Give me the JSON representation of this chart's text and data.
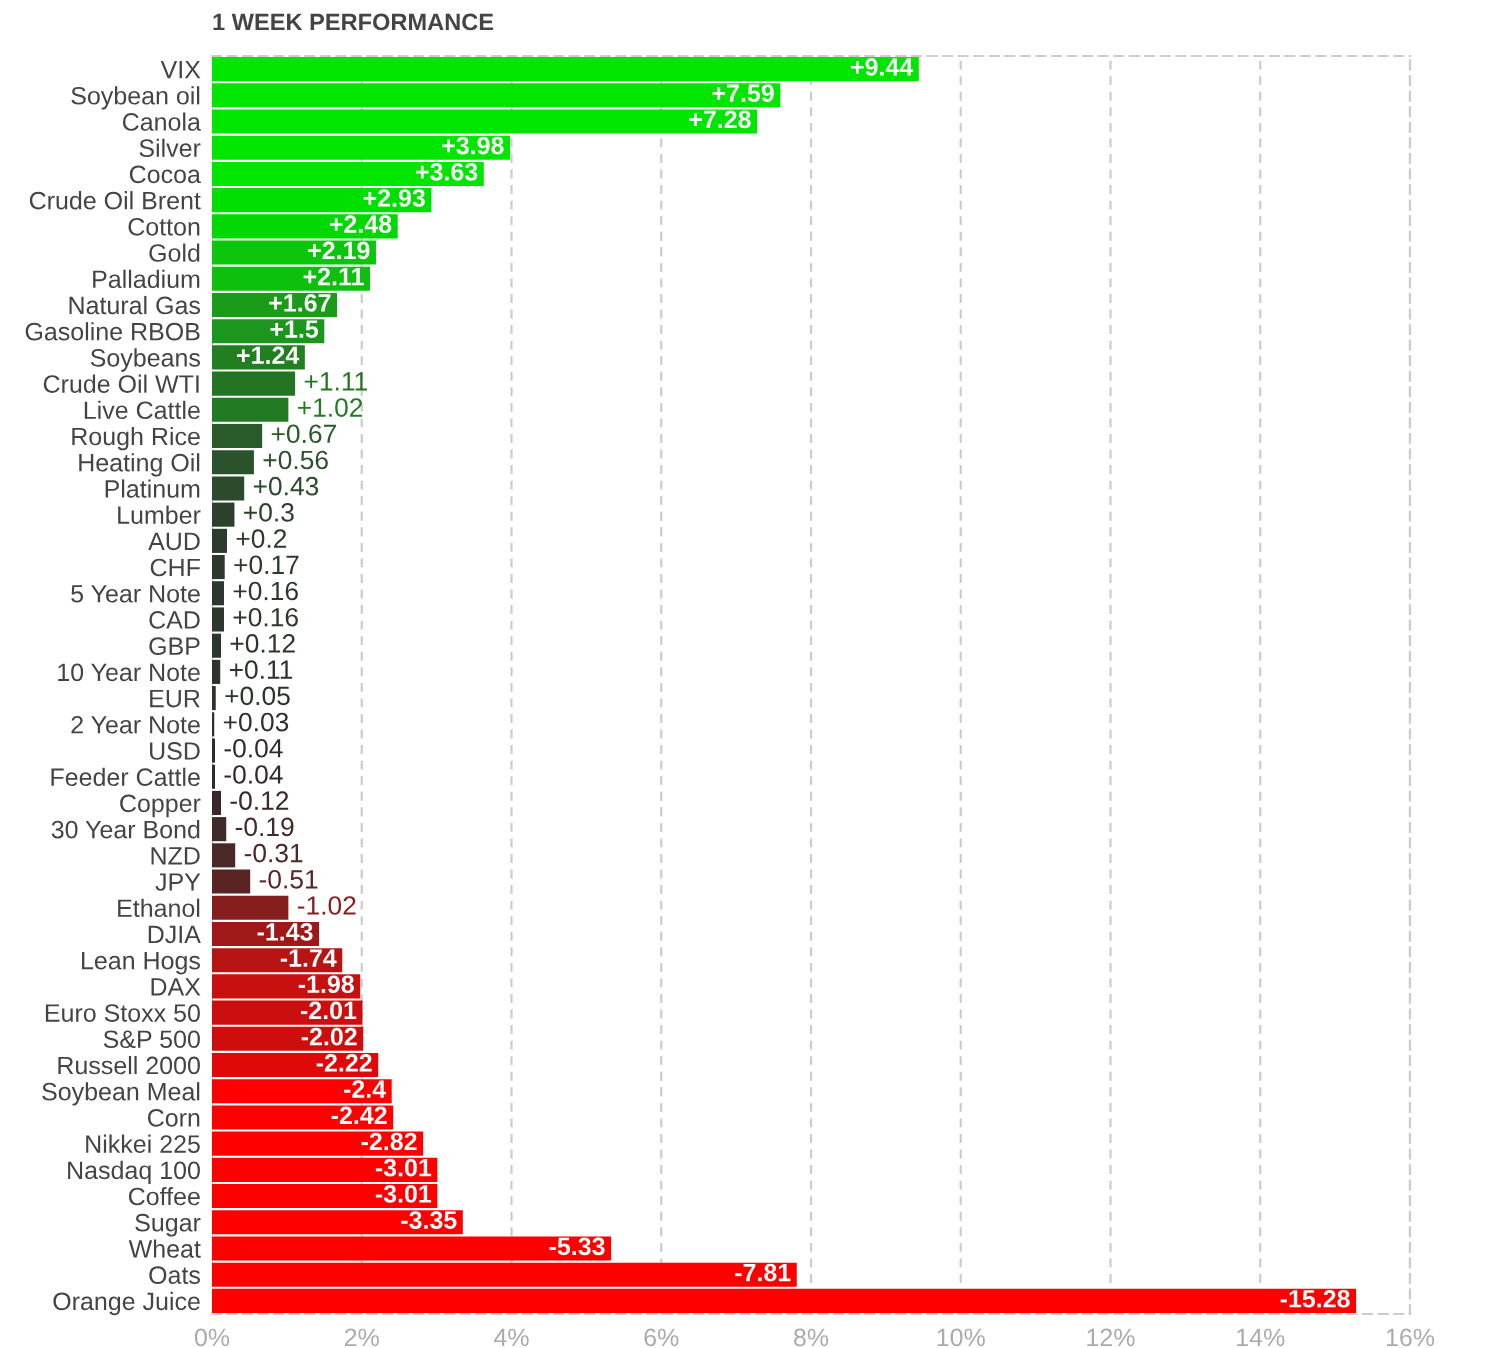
{
  "chart_data": {
    "type": "bar",
    "orientation": "horizontal",
    "title": "1 WEEK PERFORMANCE",
    "categories": [
      "VIX",
      "Soybean oil",
      "Canola",
      "Silver",
      "Cocoa",
      "Crude Oil Brent",
      "Cotton",
      "Gold",
      "Palladium",
      "Natural Gas",
      "Gasoline RBOB",
      "Soybeans",
      "Crude Oil WTI",
      "Live Cattle",
      "Rough Rice",
      "Heating Oil",
      "Platinum",
      "Lumber",
      "AUD",
      "CHF",
      "5 Year Note",
      "CAD",
      "GBP",
      "10 Year Note",
      "EUR",
      "2 Year Note",
      "USD",
      "Feeder Cattle",
      "Copper",
      "30 Year Bond",
      "NZD",
      "JPY",
      "Ethanol",
      "DJIA",
      "Lean Hogs",
      "DAX",
      "Euro Stoxx 50",
      "S&P 500",
      "Russell 2000",
      "Soybean Meal",
      "Corn",
      "Nikkei 225",
      "Nasdaq 100",
      "Coffee",
      "Sugar",
      "Wheat",
      "Oats",
      "Orange Juice"
    ],
    "values": [
      9.44,
      7.59,
      7.28,
      3.98,
      3.63,
      2.93,
      2.48,
      2.19,
      2.11,
      1.67,
      1.5,
      1.24,
      1.11,
      1.02,
      0.67,
      0.56,
      0.43,
      0.3,
      0.2,
      0.17,
      0.16,
      0.16,
      0.12,
      0.11,
      0.05,
      0.03,
      -0.04,
      -0.04,
      -0.12,
      -0.19,
      -0.31,
      -0.51,
      -1.02,
      -1.43,
      -1.74,
      -1.98,
      -2.01,
      -2.02,
      -2.22,
      -2.4,
      -2.42,
      -2.82,
      -3.01,
      -3.01,
      -3.35,
      -5.33,
      -7.81,
      -15.28
    ],
    "base": [
      0,
      0,
      0,
      0,
      0,
      0,
      0,
      0,
      0,
      0,
      0,
      0,
      0,
      0,
      0,
      0,
      0,
      0,
      0,
      0,
      0,
      0,
      0,
      0,
      0,
      0,
      0.04,
      0.04,
      0.12,
      0.19,
      0.31,
      0.51,
      1.02,
      1.43,
      1.74,
      1.98,
      2.01,
      2.02,
      2.22,
      2.4,
      2.42,
      2.82,
      3.01,
      3.01,
      3.35,
      5.33,
      7.81,
      15.28
    ],
    "value_labels": [
      "+9.44",
      "+7.59",
      "+7.28",
      "+3.98",
      "+3.63",
      "+2.93",
      "+2.48",
      "+2.19",
      "+2.11",
      "+1.67",
      "+1.5",
      "+1.24",
      "+1.11",
      "+1.02",
      "+0.67",
      "+0.56",
      "+0.43",
      "+0.3",
      "+0.2",
      "+0.17",
      "+0.16",
      "+0.16",
      "+0.12",
      "+0.11",
      "+0.05",
      "+0.03",
      "-0.04",
      "-0.04",
      "-0.12",
      "-0.19",
      "-0.31",
      "-0.51",
      "-1.02",
      "-1.43",
      "-1.74",
      "-1.98",
      "-2.01",
      "-2.02",
      "-2.22",
      "-2.4",
      "-2.42",
      "-2.82",
      "-3.01",
      "-3.01",
      "-3.35",
      "-5.33",
      "-7.81",
      "-15.28"
    ],
    "colors": [
      "#00e600",
      "#00e600",
      "#00e600",
      "#00e600",
      "#00e600",
      "#00e000",
      "#02d802",
      "#0cc50c",
      "#0ec00e",
      "#1a9c1a",
      "#1c961c",
      "#217e21",
      "#237423",
      "#227a22",
      "#2a5a2a",
      "#2b522b",
      "#2c4a2c",
      "#2c402c",
      "#2c3b2c",
      "#2c392c",
      "#2c382c",
      "#2c382c",
      "#2c362c",
      "#2c352c",
      "#2c332c",
      "#2e302e",
      "#302a2a",
      "#302a2a",
      "#3a2828",
      "#402a2a",
      "#4a2828",
      "#5a2424",
      "#861e1e",
      "#a01818",
      "#b81414",
      "#c81010",
      "#cc0e0e",
      "#d00d0d",
      "#e00808",
      "#ff0000",
      "#ff0000",
      "#ff0000",
      "#ff0000",
      "#ff0000",
      "#ff0000",
      "#ff0000",
      "#ff0000",
      "#ff0000"
    ],
    "xlim": [
      0,
      16
    ],
    "xticks": [
      {
        "value": 0,
        "label": "0%"
      },
      {
        "value": 2,
        "label": "2%"
      },
      {
        "value": 4,
        "label": "4%"
      },
      {
        "value": 6,
        "label": "6%"
      },
      {
        "value": 8,
        "label": "8%"
      },
      {
        "value": 10,
        "label": "10%"
      },
      {
        "value": 12,
        "label": "12%"
      },
      {
        "value": 14,
        "label": "14%"
      },
      {
        "value": 16,
        "label": "16%"
      }
    ],
    "grid": "x",
    "legend": false
  }
}
